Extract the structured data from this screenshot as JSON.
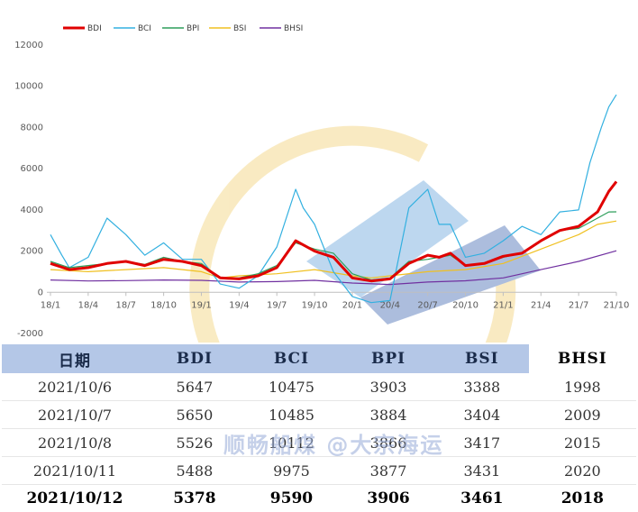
{
  "chart_data": {
    "type": "line",
    "legend": [
      "BDI",
      "BCI",
      "BPI",
      "BSI",
      "BHSI"
    ],
    "colors": {
      "BDI": "#e00000",
      "BCI": "#33b0e0",
      "BPI": "#2e9e5b",
      "BSI": "#f0c020",
      "BHSI": "#7030a0"
    },
    "y_ticks": [
      "12000",
      "10000",
      "8000",
      "6000",
      "4000",
      "2000",
      "0",
      "-2000"
    ],
    "ylim": [
      -2000,
      12000
    ],
    "x_ticks": [
      "18/1",
      "18/4",
      "18/7",
      "18/10",
      "19/1",
      "19/4",
      "19/7",
      "19/10",
      "20/1",
      "20/4",
      "20/7",
      "20/10",
      "21/1",
      "21/4",
      "21/7",
      "21/10"
    ],
    "x_index_range": [
      0,
      15
    ],
    "series": [
      {
        "name": "BDI",
        "x": [
          0,
          0.5,
          1,
          1.5,
          2,
          2.5,
          3,
          3.5,
          4,
          4.5,
          5,
          5.5,
          6,
          6.5,
          7,
          7.5,
          8,
          8.5,
          9,
          9.5,
          10,
          10.3,
          10.6,
          11,
          11.5,
          12,
          12.5,
          13,
          13.5,
          14,
          14.5,
          14.8,
          15
        ],
        "y": [
          1400,
          1100,
          1200,
          1400,
          1500,
          1300,
          1600,
          1500,
          1300,
          700,
          650,
          800,
          1200,
          2500,
          2000,
          1700,
          700,
          550,
          650,
          1400,
          1800,
          1700,
          1900,
          1300,
          1400,
          1750,
          1900,
          2500,
          3000,
          3200,
          3900,
          4900,
          5378
        ]
      },
      {
        "name": "BCI",
        "x": [
          0,
          0.3,
          0.5,
          1,
          1.5,
          2,
          2.5,
          3,
          3.5,
          4,
          4.5,
          5,
          5.5,
          6,
          6.5,
          6.7,
          7,
          7.5,
          8,
          8.5,
          9,
          9.5,
          10,
          10.3,
          10.6,
          11,
          11.5,
          12,
          12.5,
          13,
          13.5,
          14,
          14.3,
          14.6,
          14.8,
          15
        ],
        "y": [
          2800,
          1800,
          1200,
          1700,
          3600,
          2800,
          1800,
          2400,
          1600,
          1600,
          400,
          200,
          800,
          2200,
          5000,
          4100,
          3300,
          1000,
          -200,
          -500,
          -400,
          4100,
          5000,
          3300,
          3300,
          1700,
          1900,
          2500,
          3200,
          2800,
          3900,
          4000,
          6300,
          8000,
          9000,
          9590
        ]
      },
      {
        "name": "BPI",
        "x": [
          0,
          0.5,
          1,
          1.5,
          2,
          2.5,
          3,
          3.5,
          4,
          4.5,
          5,
          5.5,
          6,
          6.5,
          7,
          7.5,
          8,
          8.5,
          9,
          9.5,
          10,
          10.3,
          10.6,
          11,
          11.5,
          12,
          12.5,
          13,
          13.5,
          14,
          14.5,
          14.8,
          15
        ],
        "y": [
          1500,
          1200,
          1300,
          1400,
          1500,
          1350,
          1700,
          1500,
          1400,
          700,
          700,
          900,
          1300,
          2400,
          2100,
          1900,
          900,
          600,
          700,
          1500,
          1600,
          1700,
          1800,
          1300,
          1400,
          1700,
          1900,
          2500,
          3000,
          3100,
          3600,
          3900,
          3906
        ]
      },
      {
        "name": "BSI",
        "x": [
          0,
          1,
          2,
          3,
          4,
          4.5,
          5,
          6,
          7,
          8,
          8.5,
          9,
          10,
          11,
          12,
          13,
          14,
          14.5,
          15
        ],
        "y": [
          1100,
          1000,
          1100,
          1200,
          1000,
          700,
          800,
          900,
          1100,
          800,
          700,
          800,
          1000,
          1100,
          1400,
          2100,
          2800,
          3300,
          3461
        ]
      },
      {
        "name": "BHSI",
        "x": [
          0,
          1,
          2,
          3,
          4,
          5,
          6,
          7,
          8,
          9,
          10,
          11,
          12,
          13,
          14,
          15
        ],
        "y": [
          600,
          550,
          570,
          600,
          580,
          500,
          520,
          580,
          450,
          380,
          500,
          560,
          700,
          1100,
          1500,
          2018
        ]
      }
    ]
  },
  "table": {
    "headers": [
      "日期",
      "BDI",
      "BCI",
      "BPI",
      "BSI",
      "BHSI"
    ],
    "rows": [
      [
        "2021/10/6",
        "5647",
        "10475",
        "3903",
        "3388",
        "1998"
      ],
      [
        "2021/10/7",
        "5650",
        "10485",
        "3884",
        "3404",
        "2009"
      ],
      [
        "2021/10/8",
        "5526",
        "10112",
        "3866",
        "3417",
        "2015"
      ],
      [
        "2021/10/11",
        "5488",
        "9975",
        "3877",
        "3431",
        "2020"
      ],
      [
        "2021/10/12",
        "5378",
        "9590",
        "3906",
        "3461",
        "2018"
      ]
    ]
  },
  "watermark": "顺畅船煤 @大宗海运"
}
